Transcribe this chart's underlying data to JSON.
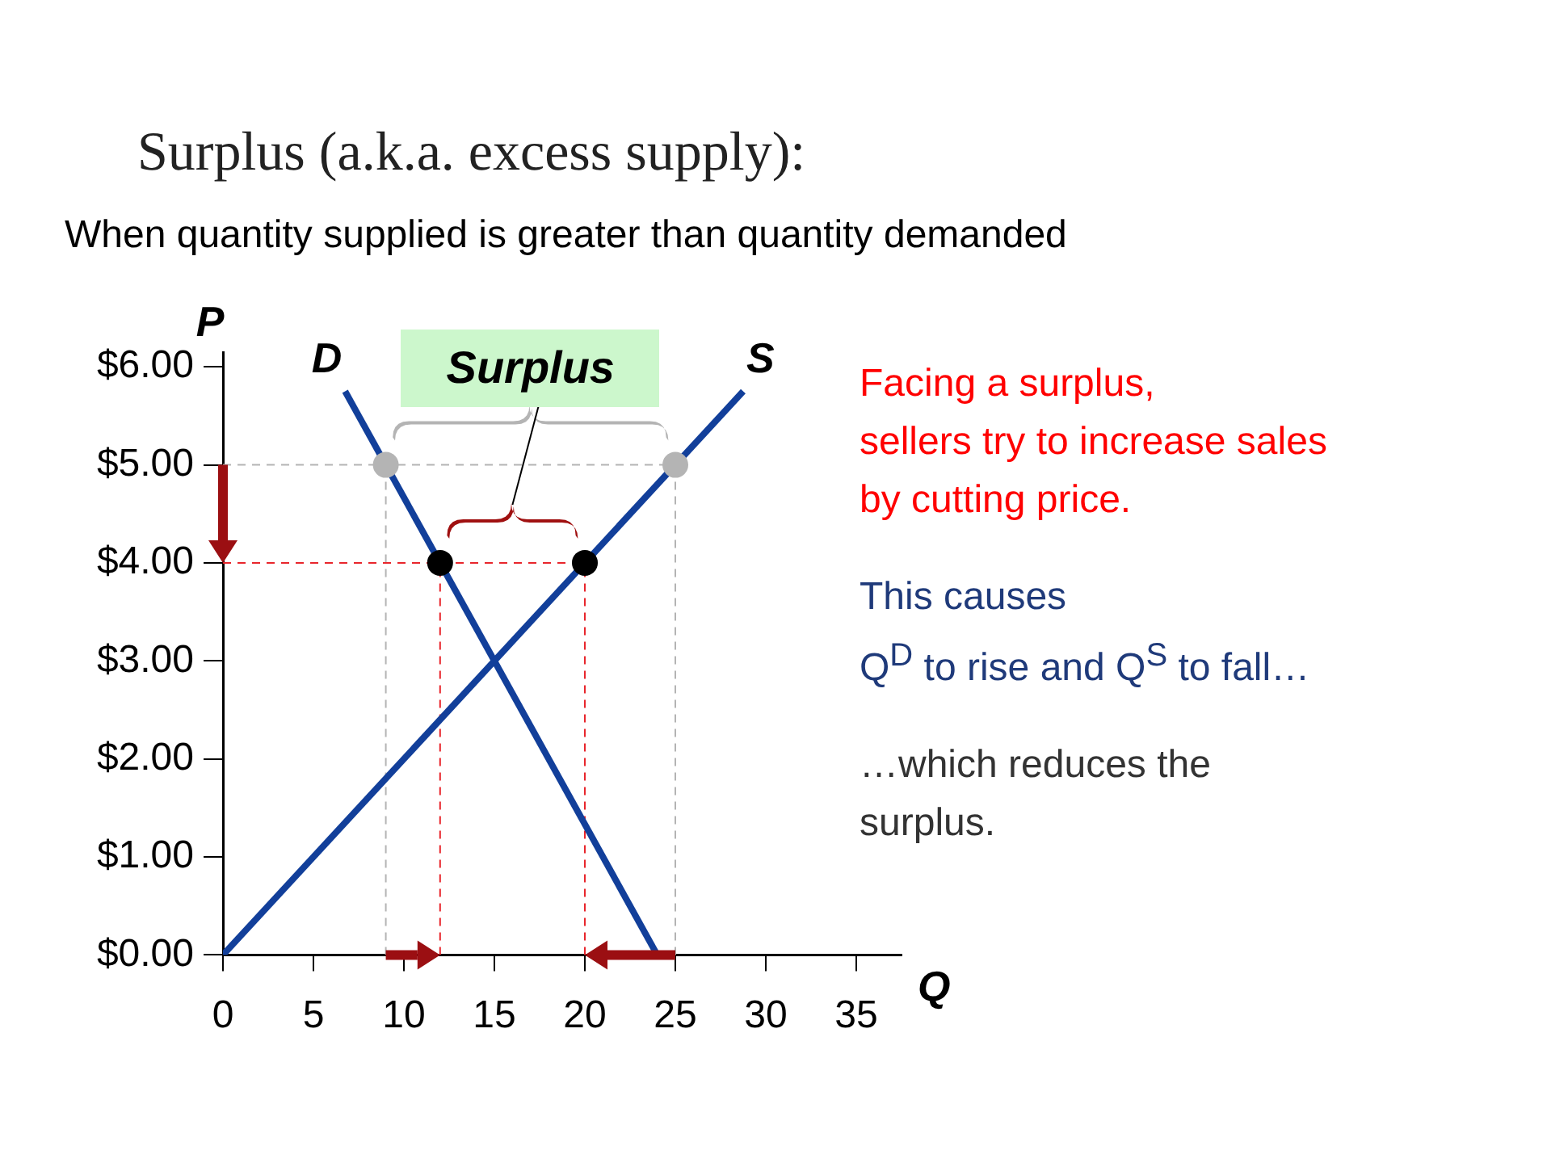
{
  "chart_data": {
    "type": "line",
    "title": "Surplus (a.k.a. excess supply):",
    "subtitle": "When quantity supplied is greater than quantity demanded",
    "xlabel": "Q",
    "ylabel": "P",
    "xlim": [
      0,
      37.5
    ],
    "ylim": [
      0,
      6.15
    ],
    "xticks": [
      0,
      5,
      10,
      15,
      20,
      25,
      30,
      35
    ],
    "yticks": [
      {
        "value": 0,
        "label": "$0.00"
      },
      {
        "value": 1,
        "label": "$1.00"
      },
      {
        "value": 2,
        "label": "$2.00"
      },
      {
        "value": 3,
        "label": "$3.00"
      },
      {
        "value": 4,
        "label": "$4.00"
      },
      {
        "value": 5,
        "label": "$5.00"
      },
      {
        "value": 6,
        "label": "$6.00"
      }
    ],
    "legend": false,
    "annotations": [
      "Surplus",
      "Facing a surplus,\nsellers try to increase sales\nby cutting price.",
      "This causes\nQ$^{D}$ to rise and Q$^{S}$ to fall…",
      "…which reduces the\nsurplus."
    ],
    "series": [
      {
        "color": "#b4b4b4",
        "line_style": "dashed",
        "marker": "none",
        "x": [
          0,
          25
        ],
        "values": [
          5,
          5
        ]
      },
      {
        "color": "#b4b4b4",
        "line_style": "dashed",
        "marker": "none",
        "x": [
          9,
          9
        ],
        "values": [
          0,
          5
        ]
      },
      {
        "color": "#b4b4b4",
        "line_style": "dashed",
        "marker": "none",
        "x": [
          25,
          25
        ],
        "values": [
          0,
          5
        ]
      },
      {
        "color": "#e8262c",
        "line_style": "dashed",
        "marker": "none",
        "x": [
          0,
          20
        ],
        "values": [
          4,
          4
        ]
      },
      {
        "color": "#e8262c",
        "line_style": "dashed",
        "marker": "none",
        "x": [
          12,
          12
        ],
        "values": [
          0,
          4
        ]
      },
      {
        "color": "#e8262c",
        "line_style": "dashed",
        "marker": "none",
        "x": [
          20,
          20
        ],
        "values": [
          0,
          4
        ]
      },
      {
        "name": "D",
        "color": "#123f9a",
        "line_style": "solid",
        "marker": "none",
        "x": [
          6.75,
          24
        ],
        "values": [
          5.75,
          0
        ]
      },
      {
        "name": "S",
        "color": "#123f9a",
        "line_style": "solid",
        "marker": "none",
        "x": [
          0,
          28.75
        ],
        "values": [
          0,
          5.75
        ]
      },
      {
        "type": "scatter",
        "color": "#b4b4b4",
        "marker": "circle",
        "x": [
          9,
          25
        ],
        "values": [
          5,
          5
        ]
      },
      {
        "type": "scatter",
        "color": "#000000",
        "marker": "circle",
        "x": [
          12,
          20
        ],
        "values": [
          4,
          4
        ]
      }
    ]
  }
}
